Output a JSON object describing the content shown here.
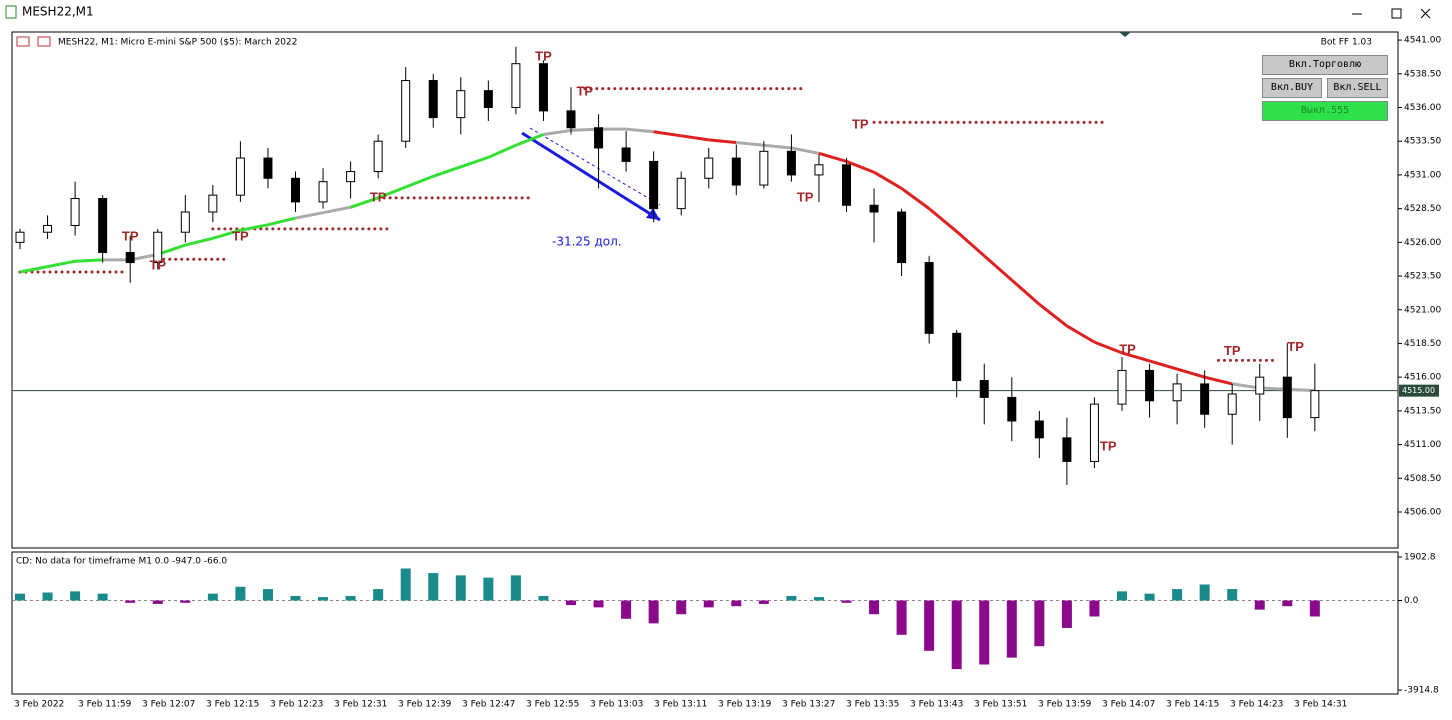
{
  "window": {
    "title": "MESH22,M1",
    "header": "MESH22, M1:  Micro E-mini S&P 500 ($5): March 2022",
    "bot": "Bot FF 1.03",
    "buttons": [
      "Вкл.Торговлю",
      "Вкл.BUY",
      "Вкл.SELL",
      "Выкл.555"
    ]
  },
  "chart_data": [
    {
      "type": "candlestick",
      "open": [
        4526,
        4526.75,
        4527.25,
        4529.25,
        4525.25,
        4524.5,
        4526.75,
        4528.25,
        4529.5,
        4532.25,
        4530.75,
        4529,
        4530.5,
        4531.25,
        4533.5,
        4538,
        4535.25,
        4537.25,
        4536,
        4539.25,
        4535.75,
        4534.5,
        4533,
        4532,
        4528.5,
        4530.75,
        4532.25,
        4530.25,
        4532.75,
        4531,
        4531.75,
        4528.75,
        4528.25,
        4524.5,
        4519.25,
        4515.75,
        4514.5,
        4512.75,
        4511.5,
        4509.75,
        4514,
        4516.5,
        4514.25,
        4515.5,
        4513.25,
        4514.75,
        4516,
        4513
      ],
      "high": [
        4527,
        4528,
        4530.5,
        4529.5,
        4526.5,
        4527,
        4529.5,
        4530.25,
        4533.5,
        4533,
        4531.25,
        4531.5,
        4532,
        4534,
        4539,
        4538.5,
        4538.25,
        4538,
        4540.5,
        4539.5,
        4537.5,
        4535.5,
        4534.25,
        4532.75,
        4531.25,
        4533,
        4533.25,
        4533.5,
        4534,
        4532.5,
        4532.25,
        4530,
        4528.5,
        4525,
        4519.5,
        4517,
        4516,
        4513.5,
        4513,
        4514.5,
        4517.5,
        4517,
        4516.25,
        4516.5,
        4515.5,
        4517,
        4518.5,
        4517
      ],
      "low": [
        4525.5,
        4526.25,
        4526.5,
        4524.5,
        4523,
        4524,
        4526,
        4527.5,
        4529,
        4530,
        4528.25,
        4528.5,
        4529.25,
        4530.75,
        4533,
        4534.5,
        4534,
        4535,
        4535.5,
        4535,
        4534,
        4530,
        4531.25,
        4527.5,
        4528,
        4530,
        4529.5,
        4530,
        4530.5,
        4529,
        4528.25,
        4526,
        4523.5,
        4518.5,
        4514.5,
        4512.5,
        4511.25,
        4510,
        4508,
        4509.25,
        4513.5,
        4513,
        4512.5,
        4512.25,
        4511,
        4512.75,
        4511.5,
        4512
      ],
      "close": [
        4526.75,
        4527.25,
        4529.25,
        4525.25,
        4524.5,
        4526.75,
        4528.25,
        4529.5,
        4532.25,
        4530.75,
        4529,
        4530.5,
        4531.25,
        4533.5,
        4538,
        4535.25,
        4537.25,
        4536,
        4539.25,
        4535.75,
        4534.5,
        4533,
        4532,
        4528.5,
        4530.75,
        4532.25,
        4530.25,
        4532.75,
        4531,
        4531.75,
        4528.75,
        4528.25,
        4524.5,
        4519.25,
        4515.75,
        4514.5,
        4512.75,
        4511.5,
        4509.75,
        4514,
        4516.5,
        4514.25,
        4515.5,
        4513.25,
        4514.75,
        4516,
        4513,
        4515
      ],
      "ma": {
        "values": [
          4523.8,
          4524.2,
          4524.6,
          4524.7,
          4524.7,
          4525.1,
          4525.8,
          4526.3,
          4526.9,
          4527.3,
          4527.8,
          4528.2,
          4528.6,
          4529.3,
          4530.1,
          4530.9,
          4531.6,
          4532.3,
          4533.2,
          4534,
          4534.3,
          4534.4,
          4534.4,
          4534.2,
          4533.9,
          4533.6,
          4533.4,
          4533.2,
          4533,
          4532.6,
          4532,
          4531.2,
          4530,
          4528.5,
          4526.8,
          4525,
          4523.2,
          4521.4,
          4519.8,
          4518.6,
          4517.8,
          4517.2,
          4516.6,
          4516,
          4515.5,
          4515.2,
          4515.1,
          4515
        ],
        "colors": [
          "#33e033",
          "#33e033",
          "#33e033",
          "#aaaaaa",
          "#aaaaaa",
          "#33e033",
          "#33e033",
          "#33e033",
          "#33e033",
          "#33e033",
          "#aaaaaa",
          "#aaaaaa",
          "#33e033",
          "#33e033",
          "#33e033",
          "#33e033",
          "#33e033",
          "#33e033",
          "#33e033",
          "#aaaaaa",
          "#aaaaaa",
          "#aaaaaa",
          "#aaaaaa",
          "#e02020",
          "#e02020",
          "#e02020",
          "#aaaaaa",
          "#aaaaaa",
          "#aaaaaa",
          "#e02020",
          "#e02020",
          "#e02020",
          "#e02020",
          "#e02020",
          "#e02020",
          "#e02020",
          "#e02020",
          "#e02020",
          "#e02020",
          "#e02020",
          "#e02020",
          "#e02020",
          "#e02020",
          "#e02020",
          "#aaaaaa",
          "#aaaaaa",
          "#aaaaaa",
          "#aaaaaa"
        ]
      },
      "levels": [
        {
          "price": 4523.8,
          "from": 0,
          "to": 3.8
        },
        {
          "price": 4529.3,
          "from": 13,
          "to": 18.5
        },
        {
          "price": 4527,
          "from": 7,
          "to": 13.5
        },
        {
          "price": 4524.75,
          "from": 5,
          "to": 7.5
        },
        {
          "price": 4537.4,
          "from": 20.5,
          "to": 28.5
        },
        {
          "price": 4534.9,
          "from": 31,
          "to": 39.3
        },
        {
          "price": 4517.25,
          "from": 43.5,
          "to": 45.5
        }
      ],
      "tp": [
        {
          "label": "TP",
          "x": 4,
          "price": 4526.4
        },
        {
          "label": "TP",
          "x": 5,
          "price": 4524.25
        },
        {
          "label": "TP",
          "x": 8,
          "price": 4526.4
        },
        {
          "label": "TP",
          "x": 13,
          "price": 4529.3
        },
        {
          "label": "TP",
          "x": 19,
          "price": 4539.75
        },
        {
          "label": "TP",
          "x": 20.5,
          "price": 4537.15
        },
        {
          "label": "TP",
          "x": 28.5,
          "price": 4529.3
        },
        {
          "label": "TP",
          "x": 30.5,
          "price": 4534.7
        },
        {
          "label": "TP",
          "x": 39.5,
          "price": 4510.8
        },
        {
          "label": "TP",
          "x": 40.2,
          "price": 4518
        },
        {
          "label": "TP",
          "x": 44,
          "price": 4517.9
        },
        {
          "label": "TP",
          "x": 46.3,
          "price": 4518.2
        }
      ],
      "annotation": "-31.25 дол.",
      "current_price": {
        "value": 4515,
        "label": "4515.00"
      },
      "ylim": [
        4503.33,
        4541.6
      ],
      "yticks": [
        {
          "value": 4541,
          "label": "4541.00"
        },
        {
          "value": 4538.5,
          "label": "4538.50"
        },
        {
          "value": 4536,
          "label": "4536.00"
        },
        {
          "value": 4533.5,
          "label": "4533.50"
        },
        {
          "value": 4531,
          "label": "4531.00"
        },
        {
          "value": 4528.5,
          "label": "4528.50"
        },
        {
          "value": 4526,
          "label": "4526.00"
        },
        {
          "value": 4523.5,
          "label": "4523.50"
        },
        {
          "value": 4521,
          "label": "4521.00"
        },
        {
          "value": 4518.5,
          "label": "4518.50"
        },
        {
          "value": 4516,
          "label": "4516.00"
        },
        {
          "value": 4513.5,
          "label": "4513.50"
        },
        {
          "value": 4511,
          "label": "4511.00"
        },
        {
          "value": 4508.5,
          "label": "4508.50"
        },
        {
          "value": 4506,
          "label": "4506.00"
        }
      ],
      "xlabels": [
        "3 Feb 2022",
        "3 Feb 11:59",
        "3 Feb 12:07",
        "3 Feb 12:15",
        "3 Feb 12:23",
        "3 Feb 12:31",
        "3 Feb 12:39",
        "3 Feb 12:47",
        "3 Feb 12:55",
        "3 Feb 13:03",
        "3 Feb 13:11",
        "3 Feb 13:19",
        "3 Feb 13:27",
        "3 Feb 13:35",
        "3 Feb 13:43",
        "3 Feb 13:51",
        "3 Feb 13:59",
        "3 Feb 14:07",
        "3 Feb 14:15",
        "3 Feb 14:23",
        "3 Feb 14:31"
      ]
    },
    {
      "type": "bar",
      "title": "CD: No data for timeframe M1 0.0 -947.0 -66.0",
      "values": [
        300,
        350,
        400,
        300,
        -100,
        -150,
        -100,
        300,
        600,
        500,
        200,
        150,
        200,
        500,
        1400,
        1200,
        1100,
        1000,
        1100,
        200,
        -200,
        -300,
        -800,
        -1000,
        -600,
        -300,
        -250,
        -150,
        200,
        150,
        -100,
        -600,
        -1500,
        -2200,
        -3000,
        -2800,
        -2500,
        -2000,
        -1200,
        -700,
        400,
        300,
        500,
        700,
        500,
        -400,
        -250,
        -700
      ],
      "positive_color": "#1a8a8a",
      "negative_color": "#8b0a8b",
      "ylim": [
        -3914.8,
        1902.8
      ],
      "yticks": [
        1902.8,
        {
          "value": 0,
          "label": "0.0"
        },
        -3914.8
      ]
    }
  ]
}
